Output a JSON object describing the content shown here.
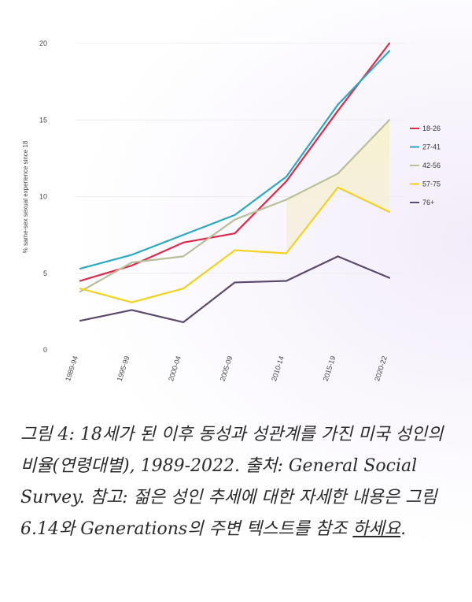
{
  "chart_data": {
    "type": "line",
    "title": "",
    "xlabel": "",
    "ylabel": "% same-sex sexual experience since 18",
    "ylim": [
      0,
      20
    ],
    "yticks": [
      0,
      5,
      10,
      15,
      20
    ],
    "grid": true,
    "legend_position": "right",
    "categories": [
      "1989-94",
      "1995-99",
      "2000-04",
      "2005-09",
      "2010-14",
      "2015-19",
      "2020-22"
    ],
    "series": [
      {
        "name": "18-26",
        "color": "#e0294a",
        "values": [
          4.5,
          5.5,
          7.0,
          7.6,
          11.0,
          15.6,
          20.0
        ]
      },
      {
        "name": "27-41",
        "color": "#2aa9c2",
        "values": [
          5.3,
          6.2,
          7.5,
          8.8,
          11.3,
          16.0,
          19.5
        ]
      },
      {
        "name": "42-56",
        "color": "#b8bf9a",
        "values": [
          3.8,
          5.7,
          6.1,
          8.5,
          9.8,
          11.5,
          15.0
        ]
      },
      {
        "name": "57-75",
        "color": "#f2d21c",
        "values": [
          4.0,
          3.1,
          4.0,
          6.5,
          6.3,
          10.6,
          9.0
        ]
      },
      {
        "name": "76+",
        "color": "#5c4a6e",
        "values": [
          1.9,
          2.6,
          1.8,
          4.4,
          4.5,
          6.1,
          4.7
        ]
      }
    ]
  },
  "caption": {
    "text": "그림 4: 18세가 된 이후 동성과 성관계를 가진 미국 성인의 비율(연령대별), 1989-2022. 출처: General Social Survey. 참고: 젊은 성인 추세에 대한 자세한 내용은 그림 6.14와 Generations의 주변 텍스트를 참조 ",
    "link": "하세요",
    "end": "."
  }
}
